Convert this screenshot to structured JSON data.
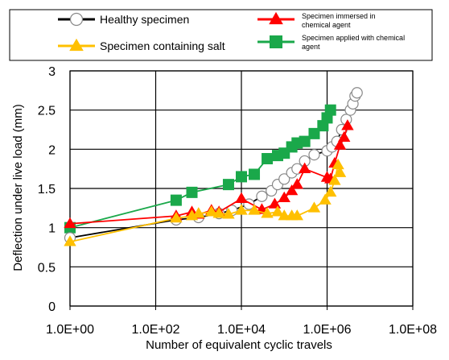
{
  "chart_data": {
    "type": "scatter",
    "xscale": "log",
    "xlim": [
      1,
      100000000
    ],
    "ylim": [
      0,
      3
    ],
    "grid": true,
    "legend_position": "top",
    "xlabel": "Number of equivalent cyclic travels",
    "ylabel": "Deflection under live load (mm)",
    "x_tick_labels": [
      "1.0E+00",
      "1.0E+02",
      "1.0E+04",
      "1.0E+06",
      "1.0E+08"
    ],
    "x_tick_values": [
      1,
      100,
      10000,
      1000000,
      100000000
    ],
    "y_tick_labels": [
      "0",
      "0.5",
      "1",
      "1.5",
      "2",
      "2.5",
      "3"
    ],
    "y_tick_values": [
      0,
      0.5,
      1,
      1.5,
      2,
      2.5,
      3
    ],
    "series": [
      {
        "name": "Healthy specimen",
        "color": "#000000",
        "marker": "circle-open",
        "points": [
          [
            1,
            0.87
          ],
          [
            300,
            1.1
          ],
          [
            1000,
            1.13
          ],
          [
            3000,
            1.18
          ],
          [
            6000,
            1.22
          ],
          [
            15000,
            1.3
          ],
          [
            30000,
            1.4
          ],
          [
            50000,
            1.47
          ],
          [
            70000,
            1.55
          ],
          [
            100000,
            1.62
          ],
          [
            150000,
            1.7
          ],
          [
            200000,
            1.75
          ],
          [
            300000,
            1.85
          ],
          [
            500000,
            1.93
          ],
          [
            1000000,
            1.98
          ],
          [
            1300000,
            2.03
          ],
          [
            1700000,
            2.1
          ],
          [
            2200000,
            2.25
          ],
          [
            2800000,
            2.38
          ],
          [
            3500000,
            2.5
          ],
          [
            4000000,
            2.58
          ],
          [
            4500000,
            2.68
          ],
          [
            5000000,
            2.72
          ]
        ]
      },
      {
        "name": "Specimen immersed in chemical agent",
        "color": "#ff0000",
        "marker": "triangle",
        "points": [
          [
            1,
            1.05
          ],
          [
            300,
            1.15
          ],
          [
            700,
            1.2
          ],
          [
            1000,
            1.17
          ],
          [
            2000,
            1.22
          ],
          [
            3000,
            1.2
          ],
          [
            10000,
            1.37
          ],
          [
            30000,
            1.23
          ],
          [
            60000,
            1.3
          ],
          [
            100000,
            1.38
          ],
          [
            150000,
            1.47
          ],
          [
            200000,
            1.55
          ],
          [
            300000,
            1.75
          ],
          [
            1000000,
            1.64
          ],
          [
            1200000,
            1.62
          ],
          [
            1500000,
            1.82
          ],
          [
            2000000,
            2.05
          ],
          [
            2500000,
            2.15
          ],
          [
            3000000,
            2.3
          ]
        ]
      },
      {
        "name": "Specimen containing salt",
        "color": "#ffc000",
        "marker": "triangle",
        "points": [
          [
            1,
            0.82
          ],
          [
            300,
            1.12
          ],
          [
            700,
            1.15
          ],
          [
            1000,
            1.18
          ],
          [
            2000,
            1.2
          ],
          [
            3000,
            1.18
          ],
          [
            5000,
            1.17
          ],
          [
            10000,
            1.22
          ],
          [
            20000,
            1.22
          ],
          [
            40000,
            1.18
          ],
          [
            70000,
            1.2
          ],
          [
            100000,
            1.15
          ],
          [
            150000,
            1.15
          ],
          [
            200000,
            1.15
          ],
          [
            500000,
            1.25
          ],
          [
            900000,
            1.35
          ],
          [
            1200000,
            1.45
          ],
          [
            1500000,
            1.6
          ],
          [
            1800000,
            1.8
          ],
          [
            2000000,
            1.7
          ]
        ]
      },
      {
        "name": "Specimen applied with chemical agent",
        "color": "#1aa84a",
        "marker": "square",
        "points": [
          [
            1,
            1.0
          ],
          [
            300,
            1.35
          ],
          [
            700,
            1.45
          ],
          [
            5000,
            1.55
          ],
          [
            10000,
            1.65
          ],
          [
            20000,
            1.68
          ],
          [
            40000,
            1.88
          ],
          [
            70000,
            1.92
          ],
          [
            100000,
            1.95
          ],
          [
            150000,
            2.03
          ],
          [
            200000,
            2.08
          ],
          [
            300000,
            2.1
          ],
          [
            500000,
            2.2
          ],
          [
            800000,
            2.3
          ],
          [
            1000000,
            2.4
          ],
          [
            1200000,
            2.5
          ]
        ]
      }
    ]
  }
}
